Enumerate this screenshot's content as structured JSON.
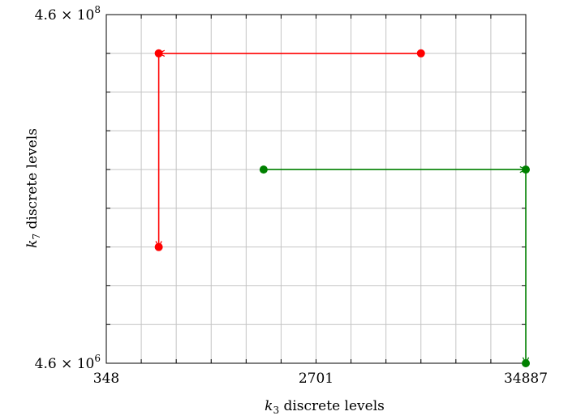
{
  "chart_data": {
    "type": "line",
    "title": "",
    "xlabel": {
      "var": "k",
      "sub": "3",
      "rest": " discrete levels"
    },
    "ylabel": {
      "var": "k",
      "sub": "7",
      "rest": " discrete levels"
    },
    "xlim": [
      0,
      12
    ],
    "ylim": [
      0,
      9
    ],
    "grid": true,
    "x_ticks": [
      {
        "pos": 0,
        "label": "348"
      },
      {
        "pos": 6,
        "label": "2701"
      },
      {
        "pos": 12,
        "label": "34887"
      }
    ],
    "y_ticks": [
      {
        "pos": 0,
        "base": "4.6 × 10",
        "exp": "6"
      },
      {
        "pos": 9,
        "base": "4.6 × 10",
        "exp": "8"
      }
    ],
    "series": [
      {
        "color": "#ff0000",
        "points": [
          [
            9,
            8
          ],
          [
            1.5,
            8
          ],
          [
            1.5,
            3
          ]
        ]
      },
      {
        "color": "#008000",
        "points": [
          [
            4.5,
            5
          ],
          [
            12,
            5
          ],
          [
            12,
            0
          ]
        ]
      }
    ]
  }
}
